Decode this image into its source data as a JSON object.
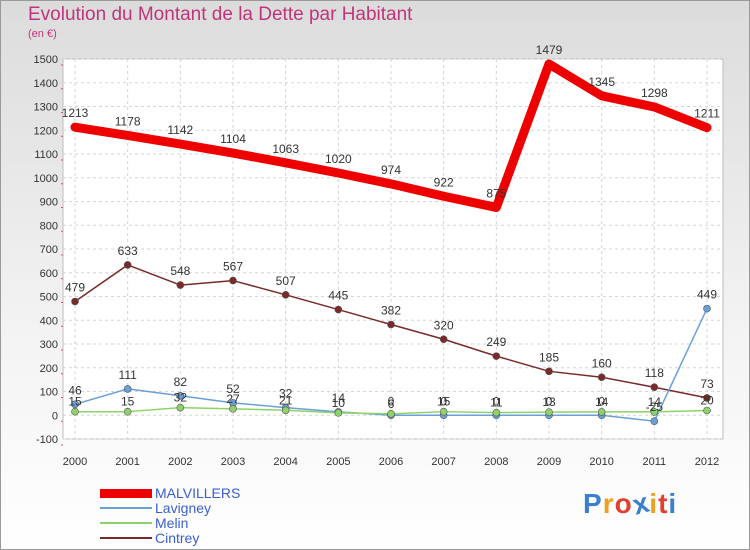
{
  "chart_data": {
    "type": "line",
    "title": "Evolution du Montant de la Dette par Habitant",
    "subtitle": "(en €)",
    "x": [
      "2000",
      "2001",
      "2002",
      "2003",
      "2004",
      "2005",
      "2006",
      "2007",
      "2008",
      "2009",
      "2010",
      "2011",
      "2012"
    ],
    "ylim": [
      -100,
      1500
    ],
    "yticks": [
      -100,
      0,
      100,
      200,
      300,
      400,
      500,
      600,
      700,
      800,
      900,
      1000,
      1100,
      1200,
      1300,
      1400,
      1500
    ],
    "grid": true,
    "legend_position": "bottom-left",
    "series": [
      {
        "name": "MALVILLERS",
        "color": "#ee0000",
        "values": [
          1213,
          1178,
          1142,
          1104,
          1063,
          1020,
          974,
          922,
          875,
          1479,
          1345,
          1298,
          1211
        ],
        "labels": [
          "1213",
          "1178",
          "1142",
          "1104",
          "1063",
          "1020",
          "974",
          "922",
          "875",
          "1479",
          "1345",
          "1298",
          "1211"
        ]
      },
      {
        "name": "Lavigney",
        "color": "#6aa0d8",
        "values": [
          46,
          111,
          82,
          52,
          32,
          14,
          0,
          0,
          0,
          0,
          0,
          -25,
          449
        ],
        "labels": [
          "46",
          "111",
          "82",
          "52",
          "32",
          "14",
          "0",
          "0",
          "0",
          "0",
          "0",
          "-25",
          "449"
        ]
      },
      {
        "name": "Melin",
        "color": "#8fd16a",
        "values": [
          15,
          15,
          32,
          27,
          21,
          10,
          6,
          15,
          11,
          13,
          14,
          14,
          20
        ],
        "labels": [
          "15",
          "15",
          "32",
          "27",
          "21",
          "10",
          "6",
          "15",
          "11",
          "13",
          "14",
          "14",
          "20"
        ]
      },
      {
        "name": "Cintrey",
        "color": "#7a2a2a",
        "values": [
          479,
          633,
          548,
          567,
          507,
          445,
          382,
          320,
          249,
          185,
          160,
          118,
          73
        ],
        "labels": [
          "479",
          "633",
          "548",
          "567",
          "507",
          "445",
          "382",
          "320",
          "249",
          "185",
          "160",
          "118",
          "73"
        ]
      }
    ]
  },
  "logo": {
    "letters": [
      "P",
      "r",
      "o",
      "x",
      "i",
      "t",
      "i"
    ],
    "colors": [
      "#3a7fd0",
      "#f0a020",
      "#e04030",
      "#3a7fd0",
      "#f0a020",
      "#e04030",
      "#3a7fd0"
    ]
  }
}
